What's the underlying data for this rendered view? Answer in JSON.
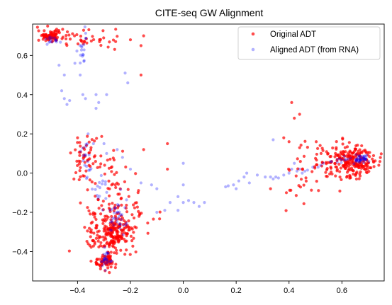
{
  "chart_data": {
    "type": "scatter",
    "title": "CITE-seq GW Alignment",
    "xlabel": "",
    "ylabel": "",
    "xlim": [
      -0.57,
      0.76
    ],
    "ylim": [
      -0.55,
      0.76
    ],
    "xticks": [
      -0.4,
      -0.2,
      0.0,
      0.2,
      0.4,
      0.6
    ],
    "xtick_labels": [
      "−0.4",
      "−0.2",
      "0.0",
      "0.2",
      "0.4",
      "0.6"
    ],
    "yticks": [
      -0.4,
      -0.2,
      0.0,
      0.2,
      0.4,
      0.6
    ],
    "ytick_labels": [
      "−0.4",
      "−0.2",
      "0.0",
      "0.2",
      "0.4",
      "0.6"
    ],
    "grid": false,
    "legend_position": "upper-right",
    "series": [
      {
        "name": "Original ADT",
        "color": "#ff0000",
        "alpha": 0.7,
        "clusters": [
          {
            "cx": -0.5,
            "cy": 0.7,
            "sx": 0.025,
            "sy": 0.015,
            "n": 90
          },
          {
            "cx": -0.4,
            "cy": 0.68,
            "sx": 0.05,
            "sy": 0.025,
            "n": 25
          },
          {
            "cx": -0.27,
            "cy": 0.68,
            "sx": 0.05,
            "sy": 0.03,
            "n": 10
          },
          {
            "cx": -0.37,
            "cy": 0.08,
            "sx": 0.025,
            "sy": 0.06,
            "n": 40
          },
          {
            "cx": -0.3,
            "cy": 0.04,
            "sx": 0.05,
            "sy": 0.1,
            "n": 30
          },
          {
            "cx": -0.24,
            "cy": -0.08,
            "sx": 0.04,
            "sy": 0.06,
            "n": 25
          },
          {
            "cx": -0.3,
            "cy": -0.18,
            "sx": 0.05,
            "sy": 0.08,
            "n": 40
          },
          {
            "cx": -0.26,
            "cy": -0.3,
            "sx": 0.04,
            "sy": 0.04,
            "n": 180
          },
          {
            "cx": -0.28,
            "cy": -0.38,
            "sx": 0.05,
            "sy": 0.04,
            "n": 40
          },
          {
            "cx": -0.3,
            "cy": -0.45,
            "sx": 0.02,
            "sy": 0.02,
            "n": 65
          },
          {
            "cx": -0.18,
            "cy": -0.2,
            "sx": 0.04,
            "sy": 0.04,
            "n": 20
          },
          {
            "cx": 0.64,
            "cy": 0.06,
            "sx": 0.04,
            "sy": 0.04,
            "n": 220
          },
          {
            "cx": 0.53,
            "cy": 0.07,
            "sx": 0.04,
            "sy": 0.06,
            "n": 45
          },
          {
            "cx": 0.45,
            "cy": -0.05,
            "sx": 0.04,
            "sy": 0.07,
            "n": 20
          }
        ],
        "points": [
          {
            "x": 0.41,
            "y": 0.36
          },
          {
            "x": 0.42,
            "y": 0.28
          },
          {
            "x": 0.44,
            "y": 0.3
          },
          {
            "x": 0.38,
            "y": 0.18
          },
          {
            "x": 0.4,
            "y": 0.16
          },
          {
            "x": -0.15,
            "y": 0.7
          },
          {
            "x": -0.2,
            "y": 0.68
          },
          {
            "x": -0.16,
            "y": 0.65
          },
          {
            "x": -0.16,
            "y": 0.5
          },
          {
            "x": -0.06,
            "y": 0.15
          },
          {
            "x": -0.06,
            "y": 0.02
          },
          {
            "x": -0.15,
            "y": 0.12
          },
          {
            "x": -0.4,
            "y": 0.18
          },
          {
            "x": 0.33,
            "y": -0.08
          },
          {
            "x": 0.39,
            "y": -0.1
          }
        ]
      },
      {
        "name": "Aligned ADT (from RNA)",
        "color": "#0000ff",
        "alpha": 0.3,
        "clusters": [
          {
            "cx": -0.49,
            "cy": 0.68,
            "sx": 0.02,
            "sy": 0.01,
            "n": 15
          },
          {
            "cx": -0.38,
            "cy": 0.63,
            "sx": 0.01,
            "sy": 0.04,
            "n": 18
          },
          {
            "cx": -0.37,
            "cy": 0.06,
            "sx": 0.01,
            "sy": 0.06,
            "n": 18
          },
          {
            "cx": -0.32,
            "cy": -0.08,
            "sx": 0.02,
            "sy": 0.05,
            "n": 15
          },
          {
            "cx": -0.25,
            "cy": -0.22,
            "sx": 0.02,
            "sy": 0.05,
            "n": 35
          },
          {
            "cx": -0.29,
            "cy": -0.44,
            "sx": 0.012,
            "sy": 0.02,
            "n": 25
          },
          {
            "cx": 0.67,
            "cy": 0.07,
            "sx": 0.015,
            "sy": 0.01,
            "n": 40
          },
          {
            "cx": 0.6,
            "cy": 0.07,
            "sx": 0.015,
            "sy": 0.01,
            "n": 12
          }
        ],
        "points": [
          {
            "x": -0.47,
            "y": 0.55
          },
          {
            "x": -0.45,
            "y": 0.5
          },
          {
            "x": -0.46,
            "y": 0.42
          },
          {
            "x": -0.45,
            "y": 0.38
          },
          {
            "x": -0.44,
            "y": 0.35
          },
          {
            "x": -0.43,
            "y": 0.37
          },
          {
            "x": -0.41,
            "y": 0.56
          },
          {
            "x": -0.39,
            "y": 0.5
          },
          {
            "x": -0.38,
            "y": 0.4
          },
          {
            "x": -0.37,
            "y": 0.38
          },
          {
            "x": -0.33,
            "y": 0.4
          },
          {
            "x": -0.32,
            "y": 0.36
          },
          {
            "x": -0.33,
            "y": 0.33
          },
          {
            "x": -0.29,
            "y": 0.4
          },
          {
            "x": -0.22,
            "y": 0.51
          },
          {
            "x": -0.21,
            "y": 0.46
          },
          {
            "x": -0.36,
            "y": 0.2
          },
          {
            "x": -0.34,
            "y": 0.15
          },
          {
            "x": -0.3,
            "y": 0.15
          },
          {
            "x": -0.29,
            "y": 0.1
          },
          {
            "x": -0.25,
            "y": 0.12
          },
          {
            "x": -0.23,
            "y": 0.08
          },
          {
            "x": -0.2,
            "y": 0.02
          },
          {
            "x": -0.16,
            "y": -0.05
          },
          {
            "x": -0.12,
            "y": -0.06
          },
          {
            "x": -0.1,
            "y": -0.08
          },
          {
            "x": -0.05,
            "y": -0.15
          },
          {
            "x": -0.02,
            "y": -0.12
          },
          {
            "x": 0.0,
            "y": -0.06
          },
          {
            "x": -0.1,
            "y": -0.2
          },
          {
            "x": -0.07,
            "y": -0.19
          },
          {
            "x": -0.02,
            "y": -0.19
          },
          {
            "x": 0.0,
            "y": -0.15
          },
          {
            "x": 0.02,
            "y": -0.14
          },
          {
            "x": 0.04,
            "y": -0.15
          },
          {
            "x": 0.06,
            "y": -0.17
          },
          {
            "x": 0.08,
            "y": -0.15
          },
          {
            "x": 0.0,
            "y": 0.05
          },
          {
            "x": 0.16,
            "y": -0.07
          },
          {
            "x": 0.17,
            "y": -0.065
          },
          {
            "x": 0.19,
            "y": -0.06
          },
          {
            "x": 0.2,
            "y": -0.08
          },
          {
            "x": 0.21,
            "y": -0.04
          },
          {
            "x": 0.23,
            "y": -0.02
          },
          {
            "x": 0.24,
            "y": 0.0
          },
          {
            "x": 0.25,
            "y": -0.05
          },
          {
            "x": 0.28,
            "y": -0.01
          },
          {
            "x": 0.31,
            "y": -0.02
          },
          {
            "x": 0.33,
            "y": -0.02
          },
          {
            "x": 0.34,
            "y": -0.03
          },
          {
            "x": 0.35,
            "y": -0.02
          },
          {
            "x": 0.36,
            "y": -0.025
          },
          {
            "x": 0.38,
            "y": -0.01
          },
          {
            "x": 0.4,
            "y": 0.0
          },
          {
            "x": 0.41,
            "y": 0.02
          },
          {
            "x": 0.42,
            "y": 0.05
          },
          {
            "x": 0.43,
            "y": 0.01
          },
          {
            "x": 0.44,
            "y": 0.02
          },
          {
            "x": 0.45,
            "y": 0.0
          },
          {
            "x": 0.46,
            "y": 0.01
          },
          {
            "x": 0.47,
            "y": 0.015
          },
          {
            "x": 0.49,
            "y": 0.03
          },
          {
            "x": 0.51,
            "y": 0.03
          },
          {
            "x": 0.52,
            "y": 0.04
          },
          {
            "x": 0.53,
            "y": 0.05
          },
          {
            "x": 0.34,
            "y": 0.17
          }
        ]
      }
    ]
  }
}
